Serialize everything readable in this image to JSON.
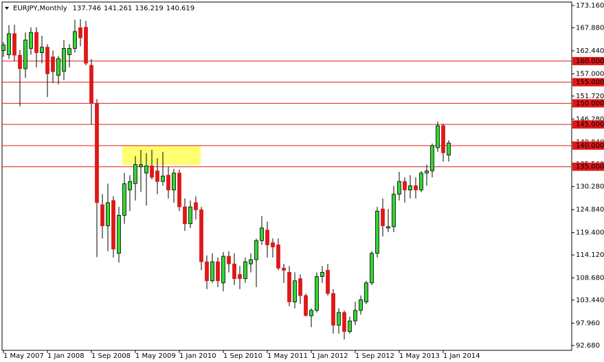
{
  "chart_data": {
    "type": "candlestick",
    "title": "EURJPY,Monthly",
    "categories": [
      "1 May 2007",
      null,
      null,
      null,
      null,
      null,
      null,
      null,
      "1 Jan 2008",
      null,
      null,
      null,
      null,
      null,
      null,
      null,
      "1 Sep 2008",
      null,
      null,
      null,
      null,
      null,
      null,
      null,
      "1 May 2009",
      null,
      null,
      null,
      null,
      null,
      null,
      null,
      "1 Jan 2010",
      null,
      null,
      null,
      null,
      null,
      null,
      null,
      "1 Sep 2010",
      null,
      null,
      null,
      null,
      null,
      null,
      null,
      "1 May 2011",
      null,
      null,
      null,
      null,
      null,
      null,
      null,
      "1 Jan 2012",
      null,
      null,
      null,
      null,
      null,
      null,
      null,
      "1 Sep 2012",
      null,
      null,
      null,
      null,
      null,
      null,
      null,
      "1 May 2013",
      null,
      null,
      null,
      null,
      null,
      null,
      null,
      "1 Jan 2014",
      null
    ],
    "open": [
      162.5,
      161.5,
      166.5,
      161.4,
      158.2,
      163.0,
      166.8,
      162.0,
      163.3,
      161.0,
      156.6,
      157.6,
      161.5,
      163.0,
      167.9,
      168.0,
      159.0,
      150.0,
      126.0,
      121.0,
      127.0,
      114.5,
      123.5,
      129.5,
      131.0,
      135.0,
      133.5,
      135.2,
      134.0,
      131.5,
      133.0,
      129.5,
      133.5,
      125.5,
      121.5,
      126.5,
      124.8,
      112.5,
      108.0,
      112.5,
      107.5,
      113.8,
      112.0,
      109.5,
      108.5,
      112.0,
      113.0,
      117.5,
      120.0,
      117.0,
      116.5,
      111.0,
      110.0,
      103.0,
      108.5,
      104.5,
      99.7,
      101.0,
      109.0,
      110.5,
      105.0,
      97.5,
      100.5,
      96.0,
      98.5,
      101.0,
      103.0,
      107.5,
      114.5,
      125.0,
      120.5,
      120.8,
      128.5,
      131.5,
      129.5,
      130.5,
      129.5,
      133.5,
      134.0,
      139.5,
      144.7,
      137.746
    ],
    "high": [
      164.5,
      168.5,
      168.6,
      162.6,
      166.8,
      168.0,
      168.0,
      166.0,
      164.0,
      162.5,
      161.2,
      165.0,
      164.0,
      169.8,
      169.9,
      169.5,
      160.5,
      151.0,
      128.5,
      131.0,
      128.0,
      125.5,
      133.5,
      133.0,
      137.5,
      139.0,
      138.2,
      139.0,
      137.0,
      138.5,
      135.0,
      134.5,
      134.3,
      127.5,
      127.0,
      128.0,
      125.5,
      114.0,
      114.5,
      113.5,
      114.8,
      115.0,
      114.5,
      111.5,
      113.5,
      114.5,
      118.0,
      123.3,
      122.0,
      118.0,
      118.0,
      112.0,
      111.5,
      110.0,
      109.5,
      105.0,
      101.5,
      110.0,
      111.5,
      112.0,
      106.0,
      101.5,
      101.0,
      99.5,
      103.0,
      104.5,
      108.0,
      115.0,
      125.5,
      127.5,
      125.0,
      130.5,
      133.8,
      132.5,
      133.0,
      132.5,
      134.0,
      135.5,
      140.5,
      145.7,
      145.2,
      141.261
    ],
    "low": [
      161.0,
      160.5,
      160.0,
      149.3,
      156.0,
      161.5,
      158.5,
      159.5,
      151.5,
      154.8,
      154.5,
      155.5,
      158.5,
      162.0,
      163.5,
      159.0,
      145.0,
      113.6,
      118.0,
      115.0,
      113.5,
      112.3,
      121.5,
      124.5,
      127.0,
      129.0,
      125.8,
      132.0,
      128.5,
      130.5,
      127.5,
      126.5,
      124.5,
      119.8,
      120.5,
      122.5,
      110.5,
      106.0,
      107.5,
      106.5,
      105.5,
      110.0,
      107.0,
      106.0,
      107.5,
      110.0,
      106.5,
      116.5,
      113.5,
      113.5,
      110.5,
      107.5,
      102.0,
      101.5,
      102.5,
      99.5,
      97.0,
      100.5,
      107.5,
      104.5,
      95.5,
      95.5,
      94.1,
      95.5,
      97.5,
      100.0,
      102.5,
      107.0,
      113.5,
      118.5,
      119.5,
      119.5,
      127.0,
      126.5,
      127.5,
      127.5,
      129.0,
      130.5,
      132.5,
      138.5,
      136.2,
      136.219
    ],
    "close": [
      163.8,
      166.5,
      161.4,
      158.2,
      165.0,
      166.8,
      162.0,
      163.3,
      157.0,
      157.5,
      160.6,
      163.0,
      163.0,
      167.0,
      165.5,
      159.5,
      150.0,
      126.5,
      121.0,
      126.5,
      115.5,
      123.5,
      131.0,
      131.5,
      135.5,
      135.5,
      135.2,
      132.5,
      131.5,
      132.8,
      129.5,
      133.5,
      125.5,
      121.5,
      125.5,
      124.8,
      112.5,
      108.0,
      112.5,
      108.0,
      113.8,
      112.0,
      108.5,
      108.5,
      112.5,
      113.0,
      117.5,
      120.5,
      116.5,
      116.0,
      111.0,
      110.5,
      103.0,
      108.0,
      104.5,
      99.8,
      101.0,
      109.0,
      110.0,
      105.0,
      97.5,
      100.5,
      96.0,
      98.5,
      101.0,
      103.5,
      107.5,
      114.5,
      124.5,
      121.0,
      120.8,
      128.5,
      131.5,
      129.5,
      130.5,
      129.5,
      133.5,
      134.0,
      140.0,
      144.7,
      138.3,
      140.619
    ],
    "up_color": "#33d633",
    "down_color": "#e01818",
    "ylim": [
      91.54,
      173.97
    ],
    "yticks": [
      {
        "value": 173.16,
        "label": "173.160"
      },
      {
        "value": 167.88,
        "label": "167.880"
      },
      {
        "value": 162.44,
        "label": "162.440"
      },
      {
        "value": 157,
        "label": "157.000"
      },
      {
        "value": 151.72,
        "label": "151.720"
      },
      {
        "value": 146.28,
        "label": "146.280"
      },
      {
        "value": 140.84,
        "label": "140.840"
      },
      {
        "value": 135.56,
        "label": "135.560"
      },
      {
        "value": 130.28,
        "label": "130.280"
      },
      {
        "value": 124.84,
        "label": "124.840"
      },
      {
        "value": 119.4,
        "label": "119.400"
      },
      {
        "value": 114.12,
        "label": "114.120"
      },
      {
        "value": 108.68,
        "label": "108.680"
      },
      {
        "value": 103.44,
        "label": "103.440"
      },
      {
        "value": 97.96,
        "label": "97.960"
      },
      {
        "value": 92.68,
        "label": "92.680"
      }
    ],
    "hlines": [
      {
        "value": 160,
        "label": "160.000"
      },
      {
        "value": 155,
        "label": "155.000"
      },
      {
        "value": 150,
        "label": "150.000"
      },
      {
        "value": 145,
        "label": "145.000"
      },
      {
        "value": 140,
        "label": "140.000"
      },
      {
        "value": 135,
        "label": "135.000"
      }
    ],
    "hline_color": "#e01818"
  }
}
